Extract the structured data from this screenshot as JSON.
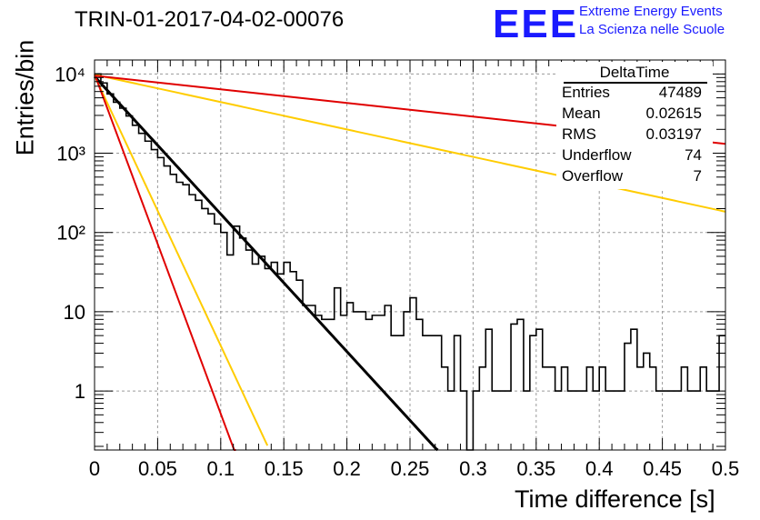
{
  "header": {
    "title": "TRIN-01-2017-04-02-00076",
    "logo_text": "EEE",
    "logo_line1": "Extreme Energy Events",
    "logo_line2": "La Scienza nelle Scuole",
    "logo_color": "#1a1aff"
  },
  "stats": {
    "name": "DeltaTime",
    "rows": [
      {
        "key": "Entries",
        "value": "47489"
      },
      {
        "key": "Mean",
        "value": "0.02615"
      },
      {
        "key": "RMS",
        "value": "0.03197"
      },
      {
        "key": "Underflow",
        "value": "74"
      },
      {
        "key": "Overflow",
        "value": "7"
      }
    ]
  },
  "chart_data": {
    "type": "line",
    "title": "TRIN-01-2017-04-02-00076",
    "xlabel": "Time difference [s]",
    "ylabel": "Entries/bin",
    "xlim": [
      0,
      0.5
    ],
    "ylim": [
      0.18,
      15000
    ],
    "yscale": "log",
    "grid": true,
    "x_ticks": [
      "0",
      "0.05",
      "0.1",
      "0.15",
      "0.2",
      "0.25",
      "0.3",
      "0.35",
      "0.4",
      "0.45",
      "0.5"
    ],
    "y_ticks": [
      {
        "value": 1,
        "label": "1"
      },
      {
        "value": 10,
        "label": "10"
      },
      {
        "value": 100,
        "label": "10²"
      },
      {
        "value": 1000,
        "label": "10³"
      },
      {
        "value": 10000,
        "label": "10⁴"
      }
    ],
    "histogram": {
      "bin_width": 0.005,
      "values": [
        10000,
        7700,
        5600,
        4400,
        3700,
        2950,
        2250,
        1780,
        1420,
        1110,
        880,
        690,
        540,
        430,
        400,
        300,
        255,
        200,
        172,
        128,
        100,
        52,
        120,
        85,
        60,
        40,
        50,
        35,
        42,
        30,
        42,
        32,
        25,
        12,
        12,
        9,
        8,
        8,
        20,
        9,
        13,
        10,
        10,
        8,
        9,
        9,
        12,
        5,
        5,
        10,
        15,
        8,
        5,
        5,
        5,
        2,
        1,
        5,
        1,
        0,
        1,
        2,
        6,
        1,
        1,
        1,
        7,
        8,
        1,
        5,
        6,
        2,
        2,
        1,
        2,
        1,
        1,
        1,
        2,
        1,
        2,
        1,
        1,
        1,
        4,
        6,
        2,
        3,
        2,
        1,
        1,
        1,
        1,
        2,
        1,
        1,
        2,
        1,
        1,
        5
      ]
    },
    "series": [
      {
        "kind": "exp_fit",
        "color": "#000000",
        "width": 3,
        "A": 9300,
        "tau": 0.02502,
        "x_max": 0.272
      },
      {
        "kind": "exp_fit",
        "color": "#ffcc00",
        "width": 2,
        "A": 9500,
        "tau": 0.01275,
        "x_max": 0.137
      },
      {
        "kind": "exp_fit",
        "color": "#e00000",
        "width": 2,
        "A": 10000,
        "tau": 0.01013,
        "x_max": 0.112
      },
      {
        "kind": "exp_fit",
        "color": "#ffcc00",
        "width": 2,
        "A": 9800,
        "tau": 0.1256,
        "x_max": 0.5
      },
      {
        "kind": "exp_fit",
        "color": "#e00000",
        "width": 2,
        "A": 9500,
        "tau": 0.2526,
        "x_max": 0.5
      }
    ]
  }
}
